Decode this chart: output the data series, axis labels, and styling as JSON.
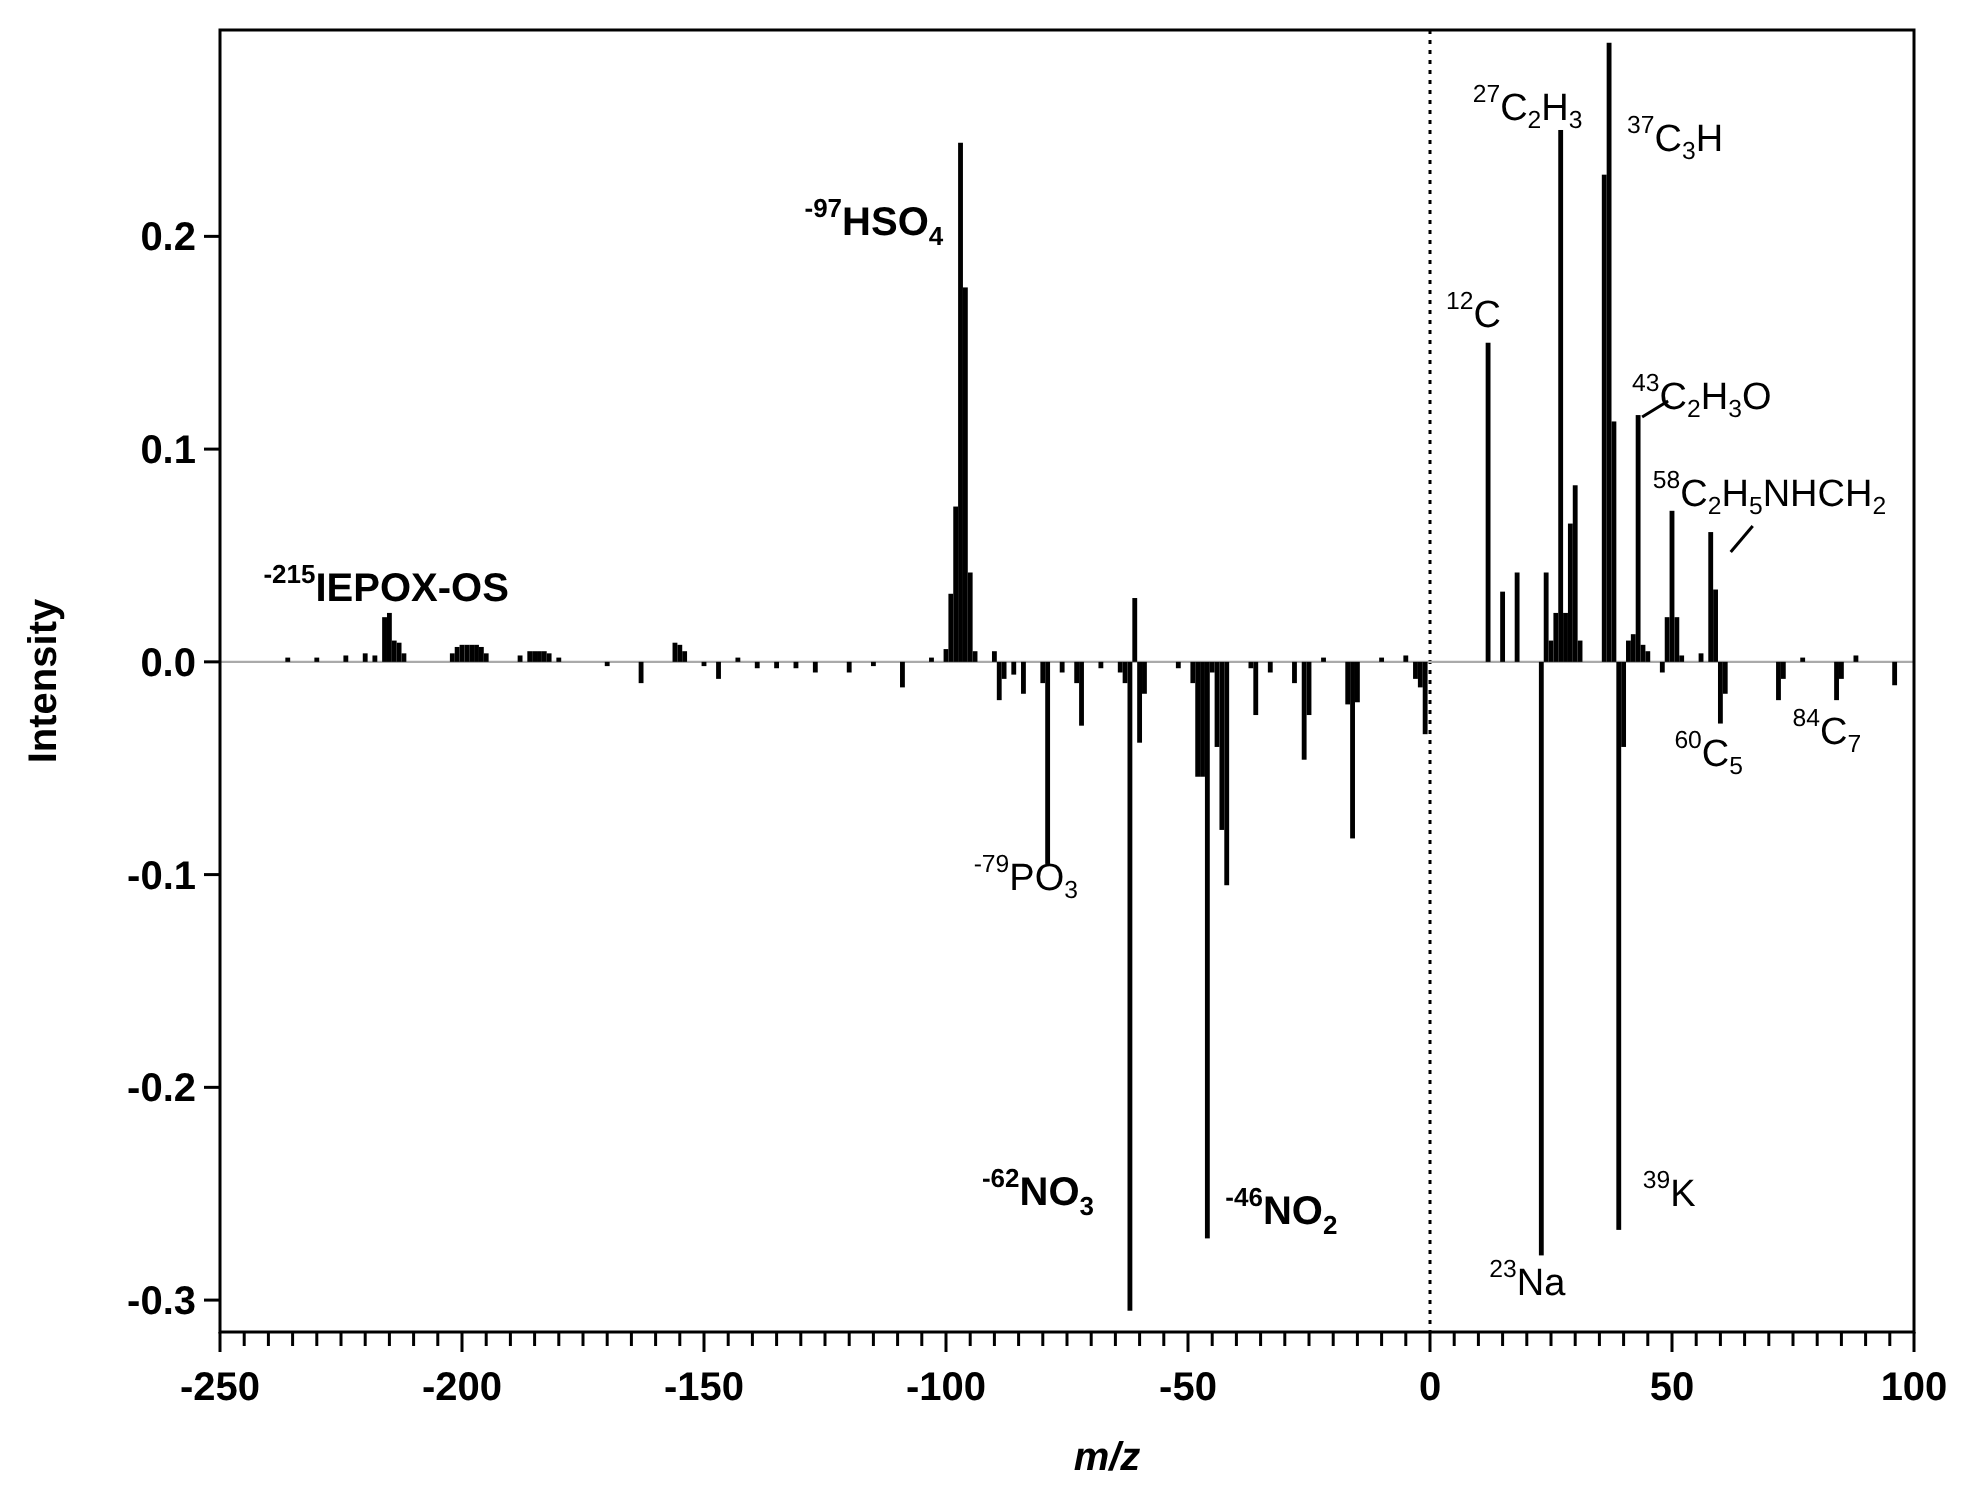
{
  "chart_data": {
    "type": "bar",
    "xlabel": "m/z",
    "ylabel": "Intensity",
    "x": [
      -236,
      -230,
      -224,
      -220,
      -218,
      -216,
      -215,
      -214,
      -213,
      -212,
      -202,
      -201,
      -200,
      -199,
      -198,
      -197,
      -196,
      -195,
      -188,
      -186,
      -185,
      -184,
      -183,
      -182,
      -180,
      -170,
      -163,
      -156,
      -155,
      -154,
      -150,
      -147,
      -143,
      -139,
      -135,
      -131,
      -127,
      -120,
      -115,
      -109,
      -103,
      -100,
      -99,
      -98,
      -97,
      -96,
      -95,
      -94,
      -90,
      -89,
      -88,
      -86,
      -84,
      -80,
      -79,
      -76,
      -73,
      -72,
      -68,
      -64,
      -63,
      -62,
      -61,
      -60,
      -59,
      -52,
      -49,
      -48,
      -47,
      -46,
      -45,
      -44,
      -43,
      -42,
      -37,
      -36,
      -33,
      -28,
      -26,
      -25,
      -22,
      -17,
      -16,
      -15,
      -10,
      -5,
      -3,
      -2,
      -1,
      12,
      15,
      18,
      23,
      24,
      25,
      26,
      27,
      28,
      29,
      30,
      31,
      36,
      37,
      38,
      39,
      40,
      41,
      42,
      43,
      44,
      45,
      48,
      49,
      50,
      51,
      52,
      56,
      58,
      59,
      60,
      61,
      72,
      73,
      77,
      84,
      85,
      88,
      96
    ],
    "series": [
      {
        "color": "#000000",
        "values": [
          0.002,
          0.002,
          0.003,
          0.004,
          0.003,
          0.021,
          0.023,
          0.01,
          0.009,
          0.004,
          0.004,
          0.007,
          0.008,
          0.008,
          0.008,
          0.008,
          0.007,
          0.004,
          0.003,
          0.005,
          0.005,
          0.005,
          0.005,
          0.004,
          0.002,
          -0.002,
          -0.01,
          0.009,
          0.008,
          0.005,
          -0.002,
          -0.008,
          0.002,
          -0.003,
          -0.003,
          -0.003,
          -0.005,
          -0.005,
          -0.002,
          -0.012,
          0.002,
          0.006,
          0.032,
          0.073,
          0.244,
          0.176,
          0.042,
          0.005,
          0.005,
          -0.018,
          -0.008,
          -0.006,
          -0.015,
          -0.01,
          -0.095,
          -0.005,
          -0.01,
          -0.03,
          -0.003,
          -0.005,
          -0.01,
          -0.305,
          0.03,
          -0.038,
          -0.015,
          -0.003,
          -0.01,
          -0.054,
          -0.054,
          -0.271,
          -0.005,
          -0.04,
          -0.079,
          -0.105,
          -0.003,
          -0.025,
          -0.005,
          -0.01,
          -0.046,
          -0.025,
          0.002,
          -0.02,
          -0.083,
          -0.019,
          0.002,
          0.003,
          -0.008,
          -0.012,
          -0.034,
          0.15,
          0.033,
          0.042,
          -0.279,
          0.042,
          0.01,
          0.023,
          0.25,
          0.023,
          0.065,
          0.083,
          0.01,
          0.229,
          0.291,
          0.113,
          -0.267,
          -0.04,
          0.01,
          0.013,
          0.116,
          0.008,
          0.005,
          -0.005,
          0.021,
          0.071,
          0.021,
          0.003,
          0.004,
          0.061,
          0.034,
          -0.029,
          -0.015,
          -0.018,
          -0.008,
          0.002,
          -0.018,
          -0.008,
          0.003,
          -0.011
        ]
      }
    ],
    "xlim": [
      -250,
      100
    ],
    "xticks": [
      -250,
      {
        "value": -245,
        "label": null
      },
      {
        "value": -240,
        "label": null
      },
      {
        "value": -235,
        "label": null
      },
      {
        "value": -230,
        "label": null
      },
      {
        "value": -225,
        "label": null
      },
      {
        "value": -220,
        "label": null
      },
      {
        "value": -215,
        "label": null
      },
      {
        "value": -210,
        "label": null
      },
      {
        "value": -205,
        "label": null
      },
      -200,
      {
        "value": -195,
        "label": null
      },
      {
        "value": -190,
        "label": null
      },
      {
        "value": -185,
        "label": null
      },
      {
        "value": -180,
        "label": null
      },
      {
        "value": -175,
        "label": null
      },
      {
        "value": -170,
        "label": null
      },
      {
        "value": -165,
        "label": null
      },
      {
        "value": -160,
        "label": null
      },
      {
        "value": -155,
        "label": null
      },
      -150,
      {
        "value": -145,
        "label": null
      },
      {
        "value": -140,
        "label": null
      },
      {
        "value": -135,
        "label": null
      },
      {
        "value": -130,
        "label": null
      },
      {
        "value": -125,
        "label": null
      },
      {
        "value": -120,
        "label": null
      },
      {
        "value": -115,
        "label": null
      },
      {
        "value": -110,
        "label": null
      },
      {
        "value": -105,
        "label": null
      },
      -100,
      {
        "value": -95,
        "label": null
      },
      {
        "value": -90,
        "label": null
      },
      {
        "value": -85,
        "label": null
      },
      {
        "value": -80,
        "label": null
      },
      {
        "value": -75,
        "label": null
      },
      {
        "value": -70,
        "label": null
      },
      {
        "value": -65,
        "label": null
      },
      {
        "value": -60,
        "label": null
      },
      {
        "value": -55,
        "label": null
      },
      -50,
      {
        "value": -45,
        "label": null
      },
      {
        "value": -40,
        "label": null
      },
      {
        "value": -35,
        "label": null
      },
      {
        "value": -30,
        "label": null
      },
      {
        "value": -25,
        "label": null
      },
      {
        "value": -20,
        "label": null
      },
      {
        "value": -15,
        "label": null
      },
      {
        "value": -10,
        "label": null
      },
      {
        "value": -5,
        "label": null
      },
      0,
      {
        "value": 5,
        "label": null
      },
      {
        "value": 10,
        "label": null
      },
      {
        "value": 15,
        "label": null
      },
      {
        "value": 20,
        "label": null
      },
      {
        "value": 25,
        "label": null
      },
      {
        "value": 30,
        "label": null
      },
      {
        "value": 35,
        "label": null
      },
      {
        "value": 40,
        "label": null
      },
      {
        "value": 45,
        "label": null
      },
      50,
      {
        "value": 55,
        "label": null
      },
      {
        "value": 60,
        "label": null
      },
      {
        "value": 65,
        "label": null
      },
      {
        "value": 70,
        "label": null
      },
      {
        "value": 75,
        "label": null
      },
      {
        "value": 80,
        "label": null
      },
      {
        "value": 85,
        "label": null
      },
      {
        "value": 90,
        "label": null
      },
      {
        "value": 95,
        "label": null
      },
      100
    ],
    "ylim": [
      -0.315,
      0.297
    ],
    "yticks": [
      -0.3,
      -0.2,
      -0.1,
      {
        "value": 0,
        "label": "0.0"
      },
      0.1,
      0.2
    ],
    "grid": false,
    "ref_lines": [
      {
        "axis": "x",
        "value": 0,
        "line_style": "dotted",
        "color": "#000000"
      },
      {
        "axis": "y",
        "value": 0,
        "line_style": "solid",
        "color": "#aaaaaa"
      }
    ],
    "annotations": [
      {
        "text": "$^{-215}$IEPOX-OS",
        "x": -215,
        "y": 0.023
      },
      {
        "text": "$^{-97}$HSO$_{4}$",
        "x": -97,
        "y": 0.244
      },
      {
        "text": "$^{-79}$PO$_{3}$",
        "x": -79,
        "y": -0.095
      },
      {
        "text": "$^{-62}$NO$_{3}$",
        "x": -62,
        "y": -0.305
      },
      {
        "text": "$^{-46}$NO$_{2}$",
        "x": -46,
        "y": -0.271
      },
      {
        "text": "$^{12}$C",
        "x": 12,
        "y": 0.15
      },
      {
        "text": "$^{27}$C$_{2}$H$_{3}$",
        "x": 27,
        "y": 0.25
      },
      {
        "text": "$^{37}$C$_{3}$H",
        "x": 37,
        "y": 0.291
      },
      {
        "text": "$^{43}$C$_{2}$H$_{3}$O",
        "x": 43,
        "y": 0.116
      },
      {
        "text": "$^{58}$C$_{2}$H$_{5}$NHCH$_{2}$",
        "x": 58,
        "y": 0.061
      },
      {
        "text": "$^{60}$C$_{5}$",
        "x": 60,
        "y": -0.029
      },
      {
        "text": "$^{84}$C$_{7}$",
        "x": 84,
        "y": -0.018
      },
      {
        "text": "$^{23}$Na",
        "x": 23,
        "y": -0.279
      },
      {
        "text": "$^{39}$K",
        "x": 39,
        "y": -0.267
      }
    ]
  }
}
